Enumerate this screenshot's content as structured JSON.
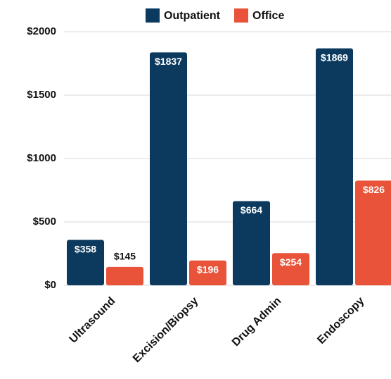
{
  "chart_data": {
    "type": "bar",
    "categories": [
      "Ultrasound",
      "Excision/Biopsy",
      "Drug Admin",
      "Endoscopy"
    ],
    "series": [
      {
        "name": "Outpatient",
        "color": "#0b3a5e",
        "values": [
          358,
          1837,
          664,
          1869
        ],
        "value_labels": [
          "$358",
          "$1837",
          "$664",
          "$1869"
        ]
      },
      {
        "name": "Office",
        "color": "#e8533a",
        "values": [
          145,
          196,
          254,
          826
        ],
        "value_labels": [
          "$145",
          "$196",
          "$254",
          "$826"
        ]
      }
    ],
    "ylim": [
      0,
      2000
    ],
    "yticks": [
      {
        "value": 0,
        "label": "$0"
      },
      {
        "value": 500,
        "label": "$500"
      },
      {
        "value": 1000,
        "label": "$1000"
      },
      {
        "value": 1500,
        "label": "$1500"
      },
      {
        "value": 2000,
        "label": "$2000"
      }
    ],
    "grid": true,
    "legend": "top"
  }
}
